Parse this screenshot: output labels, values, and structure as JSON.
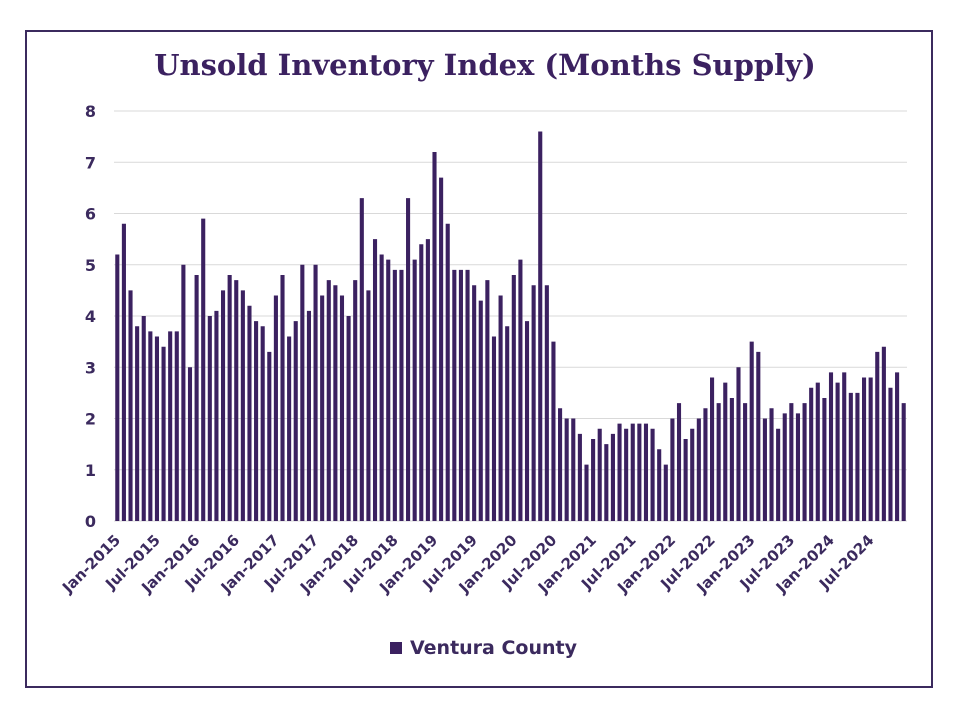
{
  "chart_data": {
    "type": "bar",
    "title": "Unsold Inventory Index (Months Supply)",
    "xlabel": "",
    "ylabel": "",
    "ylim": [
      0,
      8
    ],
    "yticks": [
      "0",
      "1",
      "2",
      "3",
      "4",
      "5",
      "6",
      "7",
      "8"
    ],
    "grid": true,
    "legend_position": "bottom",
    "colors": {
      "bar": "#3b2160",
      "grid": "#d9d9d9",
      "frame": "#3b2a5e",
      "text": "#3b2a5e"
    },
    "start_month": "Jan-2015",
    "x_tick_labels": [
      "Jan-2015",
      "Jul-2015",
      "Jan-2016",
      "Jul-2016",
      "Jan-2017",
      "Jul-2017",
      "Jan-2018",
      "Jul-2018",
      "Jan-2019",
      "Jul-2019",
      "Jan-2020",
      "Jul-2020",
      "Jan-2021",
      "Jul-2021",
      "Jan-2022",
      "Jul-2022",
      "Jan-2023",
      "Jul-2023",
      "Jan-2024",
      "Jul-2024"
    ],
    "series": [
      {
        "name": "Ventura County",
        "values": [
          5.2,
          5.8,
          4.5,
          3.8,
          4.0,
          3.7,
          3.6,
          3.4,
          3.7,
          3.7,
          5.0,
          3.0,
          4.8,
          5.9,
          4.0,
          4.1,
          4.5,
          4.8,
          4.7,
          4.5,
          4.2,
          3.9,
          3.8,
          3.3,
          4.4,
          4.8,
          3.6,
          3.9,
          5.0,
          4.1,
          5.0,
          4.4,
          4.7,
          4.6,
          4.4,
          4.0,
          4.7,
          6.3,
          4.5,
          5.5,
          5.2,
          5.1,
          4.9,
          4.9,
          6.3,
          5.1,
          5.4,
          5.5,
          7.2,
          6.7,
          5.8,
          4.9,
          4.9,
          4.9,
          4.6,
          4.3,
          4.7,
          3.6,
          4.4,
          3.8,
          4.8,
          5.1,
          3.9,
          4.6,
          7.6,
          4.6,
          3.5,
          2.2,
          2.0,
          2.0,
          1.7,
          1.1,
          1.6,
          1.8,
          1.5,
          1.7,
          1.9,
          1.8,
          1.9,
          1.9,
          1.9,
          1.8,
          1.4,
          1.1,
          2.0,
          2.3,
          1.6,
          1.8,
          2.0,
          2.2,
          2.8,
          2.3,
          2.7,
          2.4,
          3.0,
          2.3,
          3.5,
          3.3,
          2.0,
          2.2,
          1.8,
          2.1,
          2.3,
          2.1,
          2.3,
          2.6,
          2.7,
          2.4,
          2.9,
          2.7,
          2.9,
          2.5,
          2.5,
          2.8,
          2.8,
          3.3,
          3.4,
          2.6,
          2.9,
          2.3
        ]
      }
    ]
  }
}
